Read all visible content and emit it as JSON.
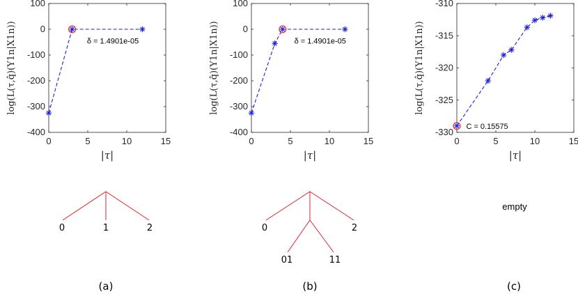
{
  "colors": {
    "line": "#1f1fd8",
    "marker": "#1f1fd8",
    "highlight": "#e0202a",
    "tree": "#e0202a",
    "axis": "#262626"
  },
  "chart_data": [
    {
      "type": "line",
      "panel": "(a)",
      "xlabel": "|τ|",
      "ylabel": "log(L(τ,q̂)(Y1n|X1n))",
      "xlim": [
        0,
        15
      ],
      "ylim": [
        -400,
        100
      ],
      "xticks": [
        0,
        5,
        10,
        15
      ],
      "yticks": [
        100,
        0,
        -100,
        -200,
        -300,
        -400
      ],
      "xtick_labels": [
        "0",
        "5",
        "10",
        "15"
      ],
      "ytick_labels": [
        "100",
        "0",
        "-100",
        "-200",
        "-300",
        "-400"
      ],
      "grid": false,
      "series": [
        {
          "x": [
            0,
            3,
            12
          ],
          "y": [
            -325,
            0,
            0
          ]
        }
      ],
      "highlight": {
        "x": 3,
        "y": 0
      },
      "annotation": {
        "text": "δ = 1.4901e-05",
        "x": 4.9,
        "y": -45
      }
    },
    {
      "type": "line",
      "panel": "(b)",
      "xlabel": "|τ|",
      "ylabel": "log(L(τ,q̂)(Y1n|X1n))",
      "xlim": [
        0,
        15
      ],
      "ylim": [
        -400,
        100
      ],
      "xticks": [
        0,
        5,
        10,
        15
      ],
      "yticks": [
        100,
        0,
        -100,
        -200,
        -300,
        -400
      ],
      "xtick_labels": [
        "0",
        "5",
        "10",
        "15"
      ],
      "ytick_labels": [
        "100",
        "0",
        "-100",
        "-200",
        "-300",
        "-400"
      ],
      "grid": false,
      "series": [
        {
          "x": [
            0,
            3,
            4,
            12
          ],
          "y": [
            -325,
            -55,
            0,
            0
          ]
        }
      ],
      "highlight": {
        "x": 4,
        "y": 0
      },
      "annotation": {
        "text": "δ = 1.4901e-05",
        "x": 5.5,
        "y": -45
      }
    },
    {
      "type": "line",
      "panel": "(c)",
      "xlabel": "|τ|",
      "ylabel": "log(L(τ,q̂)(Y1n|X1n))",
      "xlim": [
        0,
        15
      ],
      "ylim": [
        -330,
        -310
      ],
      "xticks": [
        0,
        5,
        10,
        15
      ],
      "yticks": [
        -310,
        -315,
        -320,
        -325,
        -330
      ],
      "xtick_labels": [
        "0",
        "5",
        "10",
        "15"
      ],
      "ytick_labels": [
        "-310",
        "-315",
        "-320",
        "-325",
        "-330"
      ],
      "grid": false,
      "series": [
        {
          "x": [
            0,
            4,
            6,
            7,
            9,
            10,
            11,
            12
          ],
          "y": [
            -329,
            -322,
            -318,
            -317.2,
            -313.7,
            -312.6,
            -312.2,
            -311.9
          ]
        }
      ],
      "highlight": {
        "x": 0,
        "y": -329
      },
      "annotation": {
        "text": "C = 0.15575",
        "x": 1.2,
        "y": -329
      }
    }
  ],
  "trees": [
    {
      "leaves": [
        "0",
        "1",
        "2"
      ],
      "subleaves": []
    },
    {
      "leaves": [
        "0",
        "2"
      ],
      "subleaves": [
        "01",
        "11"
      ]
    },
    {
      "label": "empty"
    }
  ],
  "subfig_labels": [
    "(a)",
    "(b)",
    "(c)"
  ]
}
